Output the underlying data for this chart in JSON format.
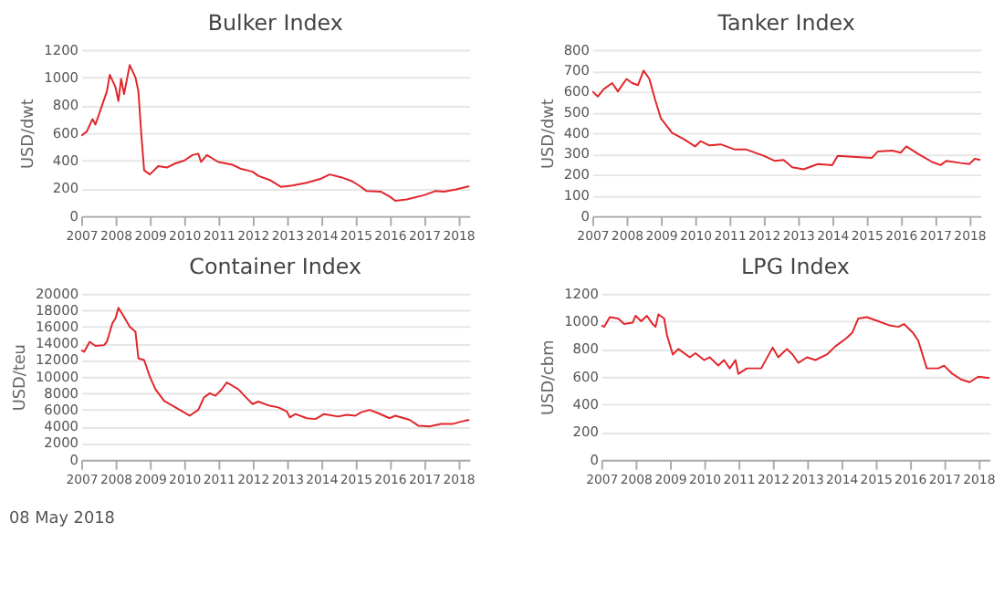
{
  "chart_data": [
    {
      "type": "line",
      "title": "Bulker Index",
      "ylabel": "USD/dwt",
      "xlim": [
        "2007",
        "2018-05"
      ],
      "xticks": [
        "2007",
        "2008",
        "2009",
        "2010",
        "2011",
        "2012",
        "2013",
        "2014",
        "2015",
        "2016",
        "2017",
        "2018"
      ],
      "ylim": [
        0,
        1200
      ],
      "yticks": [
        0,
        200,
        400,
        600,
        800,
        1000,
        1200
      ],
      "grid": "y",
      "legend": false,
      "marker": "none",
      "line_style": "solid",
      "series": [
        {
          "color": "#e0262b",
          "x": [
            "2007-01",
            "2007-03",
            "2007-05",
            "2007-06",
            "2007-08",
            "2007-10",
            "2007-11",
            "2008-01",
            "2008-02",
            "2008-03",
            "2008-04",
            "2008-06",
            "2008-08",
            "2008-09",
            "2008-10",
            "2008-11",
            "2009-01",
            "2009-04",
            "2009-07",
            "2009-10",
            "2010-01",
            "2010-04",
            "2010-06",
            "2010-07",
            "2010-09",
            "2011-01",
            "2011-06",
            "2011-09",
            "2012-01",
            "2012-03",
            "2012-07",
            "2012-11",
            "2013-03",
            "2013-08",
            "2014-01",
            "2014-04",
            "2014-08",
            "2014-12",
            "2015-03",
            "2015-05",
            "2015-10",
            "2016-01",
            "2016-03",
            "2016-07",
            "2017-01",
            "2017-05",
            "2017-08",
            "2017-12",
            "2018-05"
          ],
          "values": [
            580,
            610,
            700,
            660,
            780,
            900,
            1020,
            930,
            830,
            990,
            880,
            1090,
            1000,
            900,
            600,
            330,
            300,
            360,
            350,
            380,
            400,
            440,
            450,
            390,
            440,
            390,
            370,
            340,
            320,
            290,
            260,
            210,
            220,
            240,
            270,
            300,
            280,
            250,
            210,
            180,
            175,
            140,
            110,
            120,
            150,
            180,
            175,
            190,
            215
          ]
        }
      ]
    },
    {
      "type": "line",
      "title": "Tanker Index",
      "ylabel": "USD/dwt",
      "xlim": [
        "2007",
        "2018-05"
      ],
      "xticks": [
        "2007",
        "2008",
        "2009",
        "2010",
        "2011",
        "2012",
        "2013",
        "2014",
        "2015",
        "2016",
        "2017",
        "2018"
      ],
      "ylim": [
        0,
        800
      ],
      "yticks": [
        0,
        100,
        200,
        300,
        400,
        500,
        600,
        700,
        800
      ],
      "grid": "y",
      "legend": false,
      "marker": "none",
      "line_style": "solid",
      "series": [
        {
          "color": "#e0262b",
          "x": [
            "2007-01",
            "2007-03",
            "2007-05",
            "2007-08",
            "2007-10",
            "2008-01",
            "2008-03",
            "2008-05",
            "2008-07",
            "2008-09",
            "2008-11",
            "2009-01",
            "2009-05",
            "2009-09",
            "2010-01",
            "2010-03",
            "2010-06",
            "2010-10",
            "2011-03",
            "2011-07",
            "2012-01",
            "2012-05",
            "2012-08",
            "2012-11",
            "2013-03",
            "2013-08",
            "2014-01",
            "2014-03",
            "2014-08",
            "2015-03",
            "2015-05",
            "2015-10",
            "2016-01",
            "2016-03",
            "2016-07",
            "2016-12",
            "2017-03",
            "2017-05",
            "2017-10",
            "2018-01",
            "2018-03",
            "2018-05"
          ],
          "values": [
            600,
            575,
            610,
            640,
            600,
            660,
            640,
            630,
            700,
            660,
            560,
            470,
            400,
            370,
            335,
            360,
            340,
            345,
            320,
            320,
            290,
            265,
            270,
            235,
            225,
            250,
            245,
            290,
            285,
            280,
            310,
            315,
            305,
            335,
            300,
            260,
            245,
            265,
            255,
            250,
            275,
            270
          ]
        }
      ]
    },
    {
      "type": "line",
      "title": "Container Index",
      "ylabel": "USD/teu",
      "annotations": [
        "08 May 2018"
      ],
      "xlim": [
        "2007",
        "2018-05"
      ],
      "xticks": [
        "2007",
        "2008",
        "2009",
        "2010",
        "2011",
        "2012",
        "2013",
        "2014",
        "2015",
        "2016",
        "2017",
        "2018"
      ],
      "ylim": [
        0,
        20000
      ],
      "yticks": [
        0,
        2000,
        4000,
        6000,
        8000,
        10000,
        12000,
        14000,
        16000,
        18000,
        20000
      ],
      "grid": "y",
      "legend": false,
      "marker": "none",
      "line_style": "solid",
      "series": [
        {
          "color": "#e0262b",
          "x": [
            "2007-01",
            "2007-02",
            "2007-04",
            "2007-06",
            "2007-09",
            "2007-10",
            "2007-12",
            "2008-01",
            "2008-02",
            "2008-04",
            "2008-06",
            "2008-08",
            "2008-09",
            "2008-11",
            "2009-01",
            "2009-03",
            "2009-06",
            "2009-09",
            "2010-01",
            "2010-03",
            "2010-06",
            "2010-08",
            "2010-10",
            "2010-12",
            "2011-02",
            "2011-04",
            "2011-08",
            "2011-11",
            "2012-01",
            "2012-03",
            "2012-07",
            "2012-10",
            "2013-01",
            "2013-02",
            "2013-04",
            "2013-08",
            "2013-11",
            "2014-02",
            "2014-07",
            "2014-10",
            "2015-01",
            "2015-03",
            "2015-06",
            "2015-09",
            "2016-01",
            "2016-03",
            "2016-08",
            "2016-11",
            "2017-03",
            "2017-07",
            "2017-11",
            "2018-02",
            "2018-05"
          ],
          "values": [
            13200,
            13000,
            14200,
            13700,
            13800,
            14200,
            16500,
            17000,
            18300,
            17200,
            16000,
            15400,
            12200,
            12000,
            10000,
            8500,
            7100,
            6500,
            5700,
            5300,
            6000,
            7500,
            8000,
            7700,
            8400,
            9300,
            8500,
            7400,
            6700,
            7000,
            6500,
            6300,
            5800,
            5100,
            5500,
            5000,
            4900,
            5500,
            5200,
            5400,
            5300,
            5700,
            6000,
            5600,
            5000,
            5300,
            4800,
            4100,
            4000,
            4300,
            4300,
            4600,
            4800
          ]
        }
      ]
    },
    {
      "type": "line",
      "title": "LPG Index",
      "ylabel": "USD/cbm",
      "xlim": [
        "2007",
        "2018-05"
      ],
      "xticks": [
        "2007",
        "2008",
        "2009",
        "2010",
        "2011",
        "2012",
        "2013",
        "2014",
        "2015",
        "2016",
        "2017",
        "2018"
      ],
      "ylim": [
        0,
        1200
      ],
      "yticks": [
        0,
        200,
        400,
        600,
        800,
        1000,
        1200
      ],
      "grid": "y",
      "legend": false,
      "marker": "none",
      "line_style": "solid",
      "series": [
        {
          "color": "#e0262b",
          "x": [
            "2007-01",
            "2007-02",
            "2007-04",
            "2007-07",
            "2007-09",
            "2007-12",
            "2008-01",
            "2008-03",
            "2008-05",
            "2008-07",
            "2008-08",
            "2008-09",
            "2008-11",
            "2008-12",
            "2009-02",
            "2009-04",
            "2009-08",
            "2009-10",
            "2010-01",
            "2010-03",
            "2010-06",
            "2010-08",
            "2010-10",
            "2010-12",
            "2011-01",
            "2011-04",
            "2011-09",
            "2012-01",
            "2012-03",
            "2012-06",
            "2012-08",
            "2012-10",
            "2013-01",
            "2013-04",
            "2013-08",
            "2013-11",
            "2014-03",
            "2014-05",
            "2014-07",
            "2014-10",
            "2015-02",
            "2015-06",
            "2015-09",
            "2015-11",
            "2016-02",
            "2016-04",
            "2016-07",
            "2016-11",
            "2017-01",
            "2017-04",
            "2017-07",
            "2017-10",
            "2018-01",
            "2018-05"
          ],
          "values": [
            970,
            960,
            1030,
            1020,
            980,
            990,
            1040,
            1000,
            1040,
            980,
            960,
            1050,
            1020,
            900,
            760,
            800,
            740,
            770,
            720,
            740,
            680,
            720,
            660,
            720,
            620,
            660,
            660,
            810,
            740,
            800,
            760,
            700,
            740,
            720,
            760,
            820,
            880,
            920,
            1020,
            1030,
            1000,
            970,
            960,
            980,
            920,
            860,
            660,
            660,
            680,
            620,
            580,
            560,
            600,
            590
          ]
        }
      ]
    }
  ]
}
